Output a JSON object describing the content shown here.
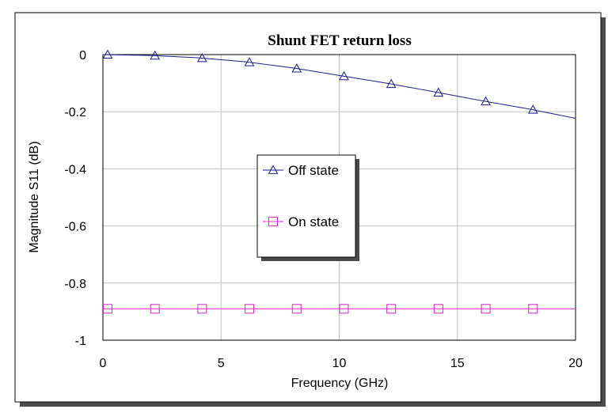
{
  "chart_data": {
    "type": "line",
    "title": "Shunt FET return loss",
    "xlabel": "Frequency (GHz)",
    "ylabel": "Magnitude S11 (dB)",
    "xlim": [
      0,
      20
    ],
    "ylim": [
      -1,
      0
    ],
    "xticks": [
      0,
      5,
      10,
      15,
      20
    ],
    "yticks": [
      0,
      -0.2,
      -0.4,
      -0.6,
      -0.8,
      -1
    ],
    "grid": true,
    "legend_position": "center",
    "series": [
      {
        "name": "Off state",
        "color": "#1a1a8c",
        "marker": "triangle",
        "x": [
          0,
          2,
          4,
          6,
          8,
          10,
          12,
          14,
          16,
          18,
          20
        ],
        "y": [
          0,
          -0.003,
          -0.011,
          -0.025,
          -0.046,
          -0.073,
          -0.1,
          -0.13,
          -0.161,
          -0.19,
          -0.223
        ],
        "marker_x": [
          0.2,
          2.2,
          4.2,
          6.2,
          8.2,
          10.2,
          12.2,
          14.2,
          16.2,
          18.2
        ]
      },
      {
        "name": "On state",
        "color": "#e020c8",
        "marker": "square",
        "x": [
          0,
          20
        ],
        "y": [
          -0.89,
          -0.89
        ],
        "marker_x": [
          0.2,
          2.2,
          4.2,
          6.2,
          8.2,
          10.2,
          12.2,
          14.2,
          16.2,
          18.2
        ]
      }
    ]
  }
}
